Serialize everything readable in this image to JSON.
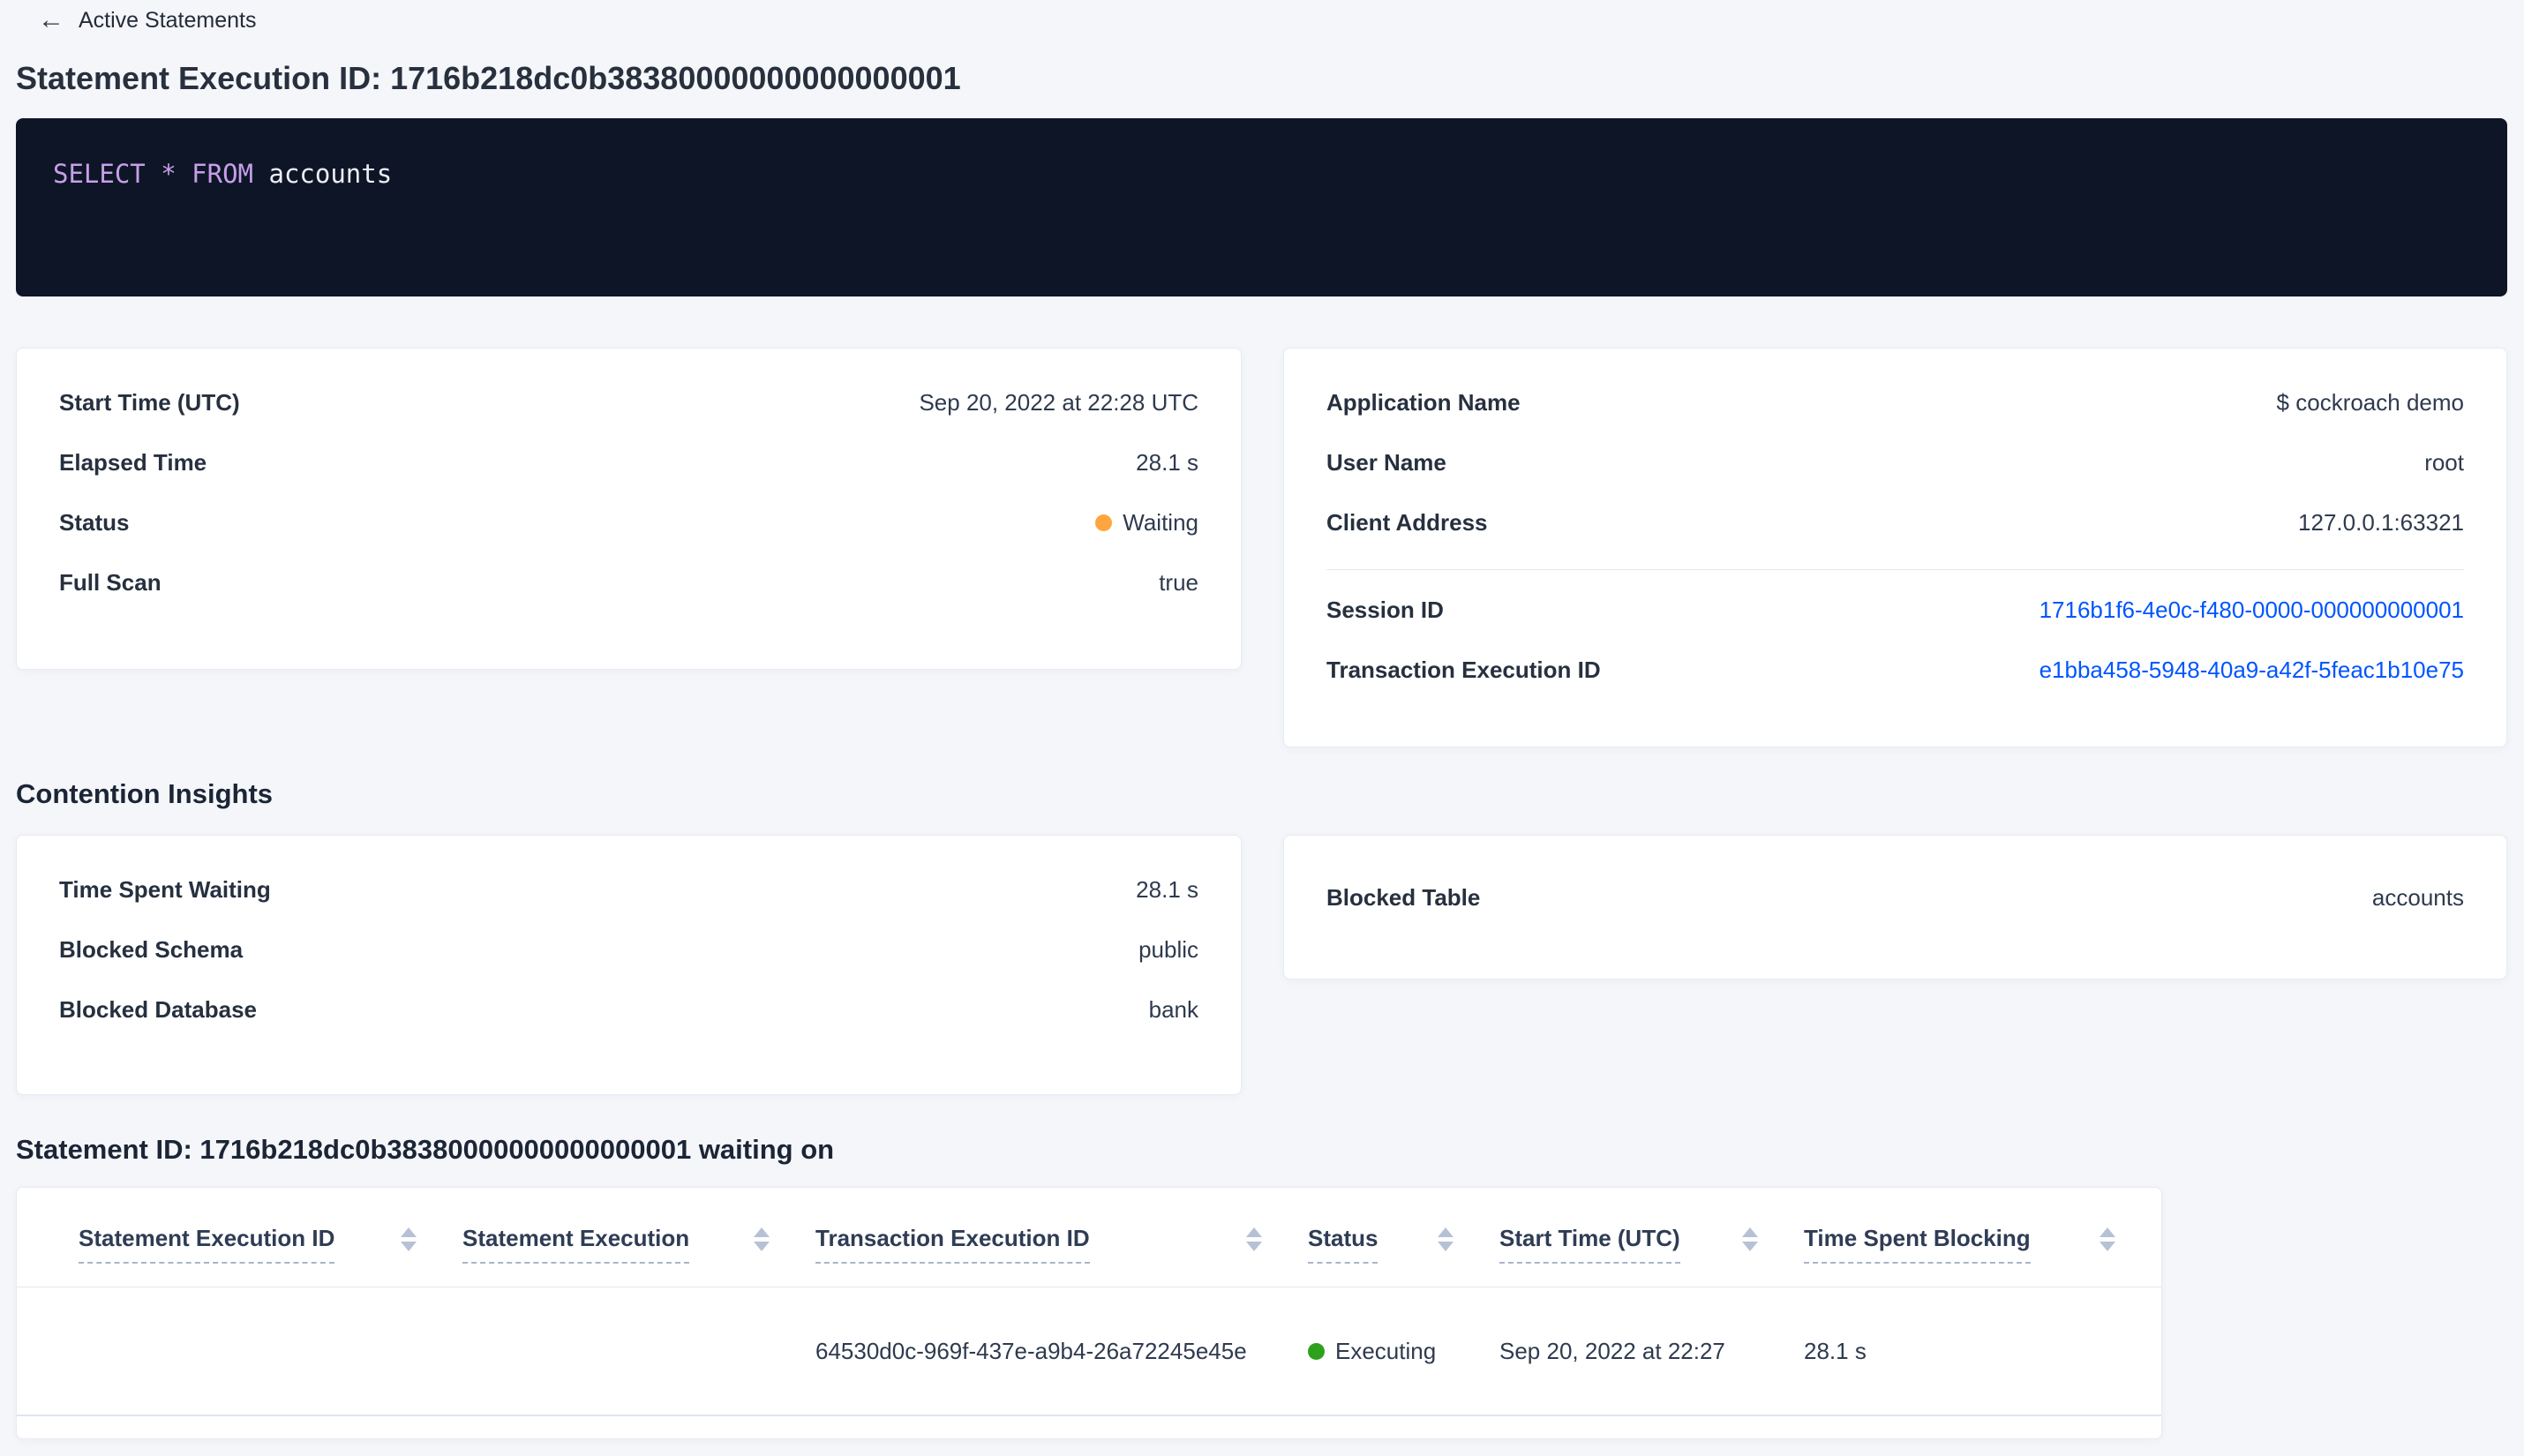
{
  "colors": {
    "page_background": "#f4f6fa",
    "code_background": "#0e1527",
    "sql_keyword_purple": "#c79fe8",
    "link_blue": "#0055ff",
    "status_waiting_orange": "#ffa53f",
    "status_executing_green": "#2da01c"
  },
  "header": {
    "back_label": "Active Statements",
    "back_icon": "arrow-left",
    "title": "Statement Execution ID: 1716b218dc0b38380000000000000001"
  },
  "sql_box": {
    "keyword_select": "SELECT",
    "star": "*",
    "keyword_from": "FROM",
    "table_name": "accounts"
  },
  "overview_card": {
    "rows": [
      {
        "label": "Start Time (UTC)",
        "value": "Sep 20, 2022 at 22:28 UTC"
      },
      {
        "label": "Elapsed Time",
        "value": "28.1 s"
      },
      {
        "label": "Status",
        "value": "Waiting",
        "status_color": "#ffa53f"
      },
      {
        "label": "Full Scan",
        "value": "true"
      }
    ]
  },
  "session_card": {
    "rows": [
      {
        "label": "Application Name",
        "value": "$ cockroach demo"
      },
      {
        "label": "User Name",
        "value": "root"
      },
      {
        "label": "Client Address",
        "value": "127.0.0.1:63321"
      }
    ],
    "link_rows": [
      {
        "label": "Session ID",
        "value": "1716b1f6-4e0c-f480-0000-000000000001"
      },
      {
        "label": "Transaction Execution ID",
        "value": "e1bba458-5948-40a9-a42f-5feac1b10e75"
      }
    ]
  },
  "contention": {
    "heading": "Contention Insights",
    "left_card": {
      "rows": [
        {
          "label": "Time Spent Waiting",
          "value": "28.1 s"
        },
        {
          "label": "Blocked Schema",
          "value": "public"
        },
        {
          "label": "Blocked Database",
          "value": "bank"
        }
      ]
    },
    "right_card": {
      "rows": [
        {
          "label": "Blocked Table",
          "value": "accounts"
        }
      ]
    }
  },
  "waiting_section": {
    "heading": "Statement ID: 1716b218dc0b38380000000000000001 waiting on",
    "table": {
      "columns": [
        "Statement Execution ID",
        "Statement Execution",
        "Transaction Execution ID",
        "Status",
        "Start Time (UTC)",
        "Time Spent Blocking"
      ],
      "rows": [
        {
          "statement_execution_id": "",
          "statement_execution": "",
          "transaction_execution_id": "64530d0c-969f-437e-a9b4-26a72245e45e",
          "status": "Executing",
          "status_color": "#2da01c",
          "start_time": "Sep 20, 2022 at 22:27",
          "time_spent_blocking": "28.1 s"
        }
      ]
    }
  }
}
